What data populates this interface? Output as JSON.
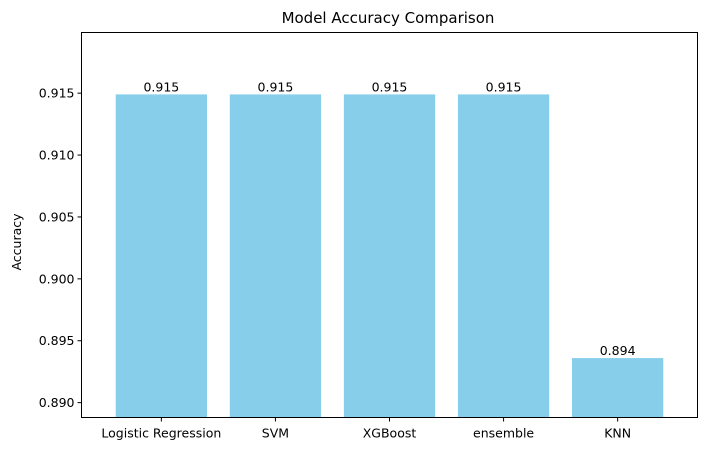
{
  "chart_data": {
    "type": "bar",
    "title": "Model Accuracy Comparison",
    "xlabel": "",
    "ylabel": "Accuracy",
    "categories": [
      "Logistic Regression",
      "SVM",
      "XGBoost",
      "ensemble",
      "KNN"
    ],
    "values": [
      0.9149,
      0.9149,
      0.9149,
      0.9149,
      0.8936
    ],
    "value_labels": [
      "0.915",
      "0.915",
      "0.915",
      "0.915",
      "0.894"
    ],
    "ylim": [
      0.8888,
      0.9199
    ],
    "yticks": [
      0.89,
      0.895,
      0.9,
      0.905,
      0.91,
      0.915
    ],
    "ytick_labels": [
      "0.890",
      "0.895",
      "0.900",
      "0.905",
      "0.910",
      "0.915"
    ],
    "bar_color": "#87ceeb",
    "grid": false,
    "legend": "none"
  }
}
